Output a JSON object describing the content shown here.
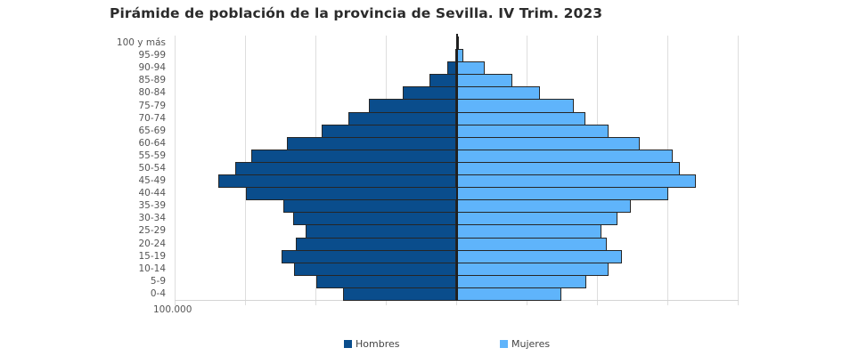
{
  "title": "Pirámide de población de la provincia de Sevilla. IV Trim. 2023",
  "legend": [
    {
      "label": "Hombres",
      "color": "#0a4d8c"
    },
    {
      "label": "Mujeres",
      "color": "#5fb4fb"
    }
  ],
  "x_axis": {
    "tick_label": "100.000"
  },
  "chart_data": {
    "type": "bar",
    "orientation": "horizontal-population-pyramid",
    "title": "Pirámide de población de la provincia de Sevilla. IV Trim. 2023",
    "xlabel": "",
    "ylabel": "",
    "categories": [
      "100 y más",
      "95-99",
      "90-94",
      "85-89",
      "80-84",
      "75-79",
      "70-74",
      "65-69",
      "60-64",
      "55-59",
      "50-54",
      "45-49",
      "40-44",
      "35-39",
      "30-34",
      "25-29",
      "20-24",
      "15-19",
      "10-14",
      "5-9",
      "0-4"
    ],
    "series": [
      {
        "name": "Hombres",
        "color": "#0a4d8c",
        "side": "left",
        "values": [
          200,
          400,
          3200,
          9500,
          19300,
          31300,
          38300,
          47800,
          60400,
          72800,
          78500,
          84500,
          75000,
          61400,
          58200,
          53500,
          57000,
          62300,
          57900,
          49700,
          40200
        ]
      },
      {
        "name": "Mujeres",
        "color": "#5fb4fb",
        "side": "right",
        "values": [
          400,
          2500,
          10100,
          19900,
          29700,
          41500,
          45600,
          54100,
          64900,
          76600,
          79400,
          85100,
          75300,
          62000,
          57000,
          51300,
          53200,
          58600,
          54100,
          46200,
          37300
        ]
      }
    ],
    "xlim": [
      -100000,
      100000
    ],
    "grid_step": 25000,
    "tick_labels": [
      "100.000"
    ],
    "grid": true,
    "legend_position": "bottom"
  }
}
